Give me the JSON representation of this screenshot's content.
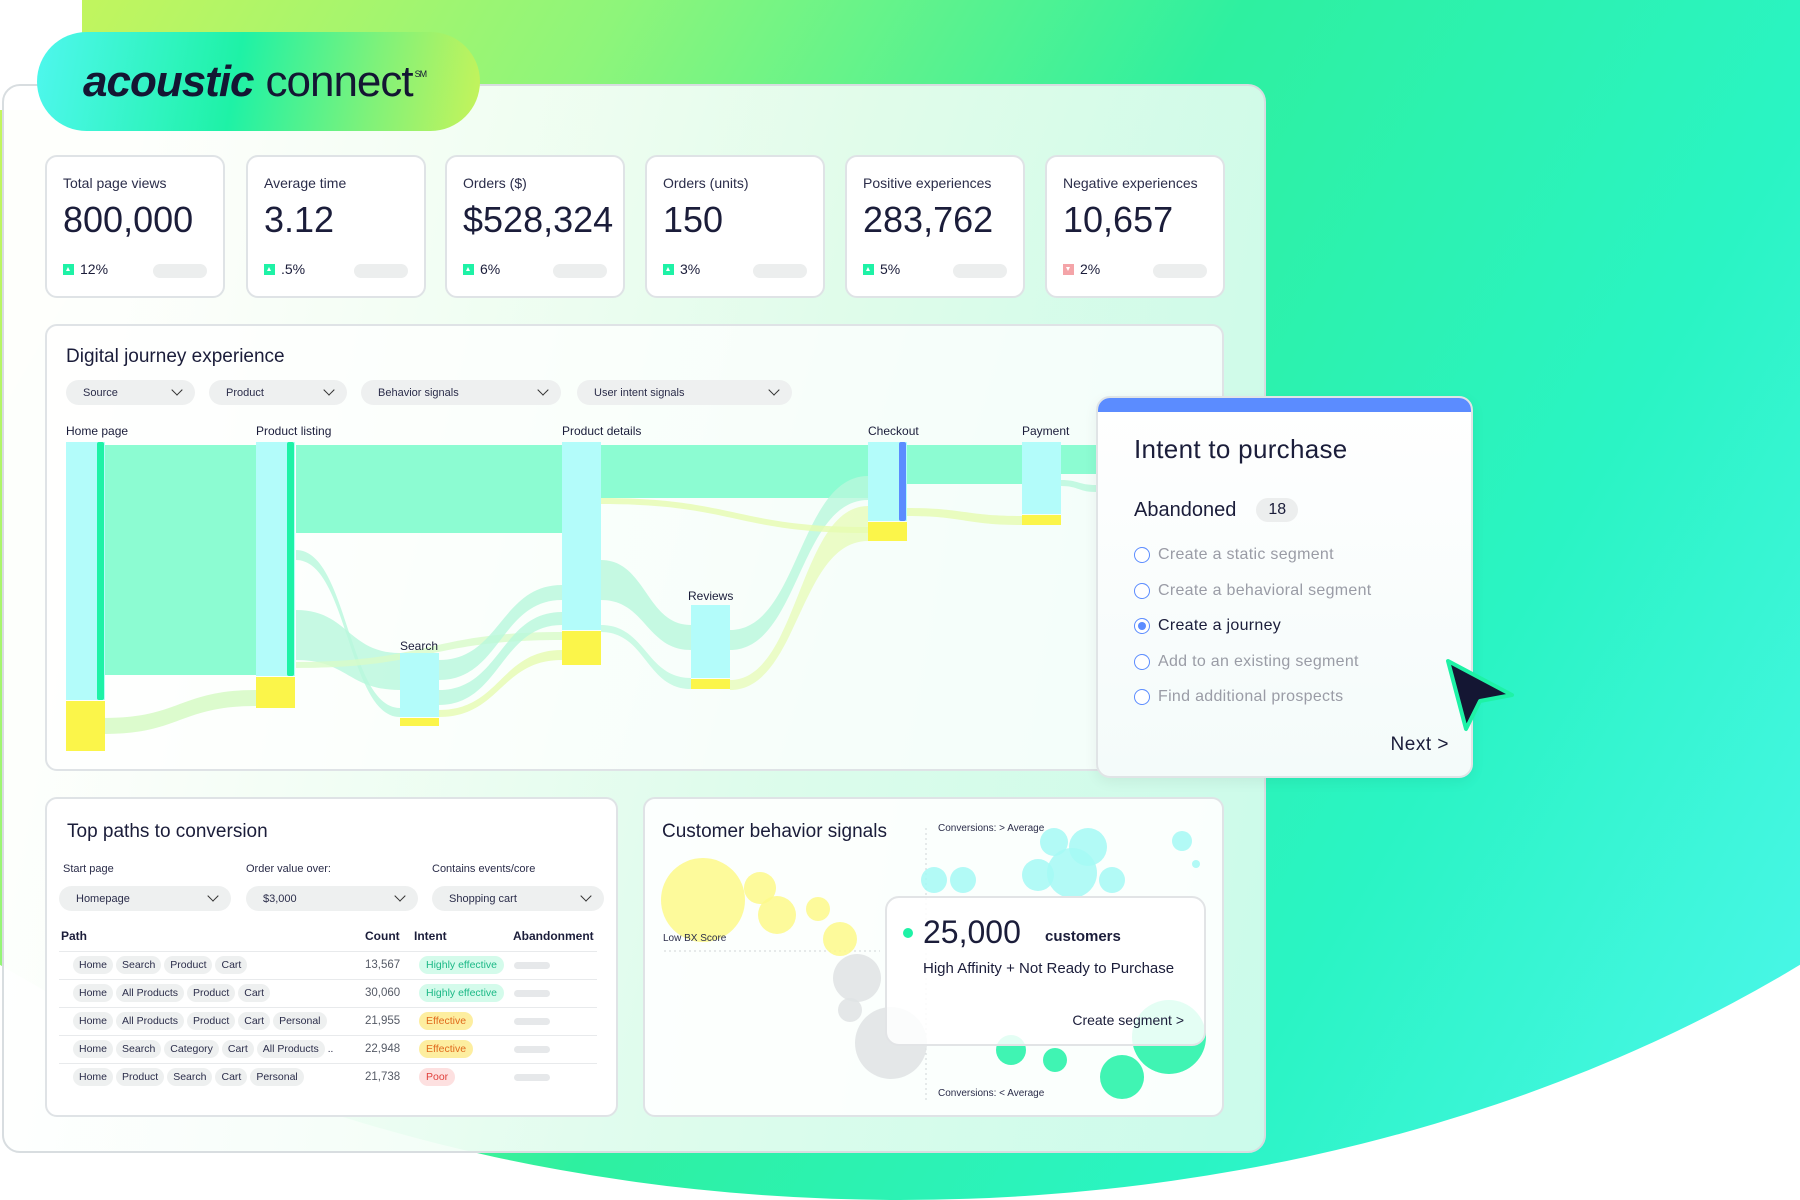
{
  "brand": {
    "name_bold": "acoustic",
    "name_light": "connect",
    "mark": "SM"
  },
  "kpis": [
    {
      "label": "Total page views",
      "value": "800,000",
      "change": "12%",
      "trend": "up"
    },
    {
      "label": "Average time",
      "value": "3.12",
      "change": ".5%",
      "trend": "up"
    },
    {
      "label": "Orders ($)",
      "value": "$528,324",
      "change": "6%",
      "trend": "up"
    },
    {
      "label": "Orders (units)",
      "value": "150",
      "change": "3%",
      "trend": "up"
    },
    {
      "label": "Positive experiences",
      "value": "283,762",
      "change": "5%",
      "trend": "up"
    },
    {
      "label": "Negative experiences",
      "value": "10,657",
      "change": "2%",
      "trend": "down"
    }
  ],
  "journey": {
    "title": "Digital journey experience",
    "filters": [
      "Source",
      "Product",
      "Behavior signals",
      "User intent signals"
    ],
    "nodes": [
      "Home page",
      "Product listing",
      "Product details",
      "Checkout",
      "Payment",
      "Search",
      "Reviews"
    ]
  },
  "intent_popup": {
    "title": "Intent to purchase",
    "status": "Abandoned",
    "count": "18",
    "options": [
      {
        "label": "Create a static segment",
        "selected": false
      },
      {
        "label": "Create a behavioral segment",
        "selected": false
      },
      {
        "label": "Create a journey",
        "selected": true
      },
      {
        "label": "Add to an existing segment",
        "selected": false
      },
      {
        "label": "Find additional prospects",
        "selected": false
      }
    ],
    "next_label": "Next >"
  },
  "top_paths": {
    "title": "Top paths to conversion",
    "filters": [
      {
        "label": "Start page",
        "value": "Homepage"
      },
      {
        "label": "Order value over:",
        "value": "$3,000"
      },
      {
        "label": "Contains events/core",
        "value": "Shopping cart"
      }
    ],
    "columns": [
      "Path",
      "Count",
      "Intent",
      "Abandonment"
    ],
    "rows": [
      {
        "path": [
          "Home",
          "Search",
          "Product",
          "Cart"
        ],
        "more": "",
        "count": "13,567",
        "intent": "Highly effective",
        "level": "high"
      },
      {
        "path": [
          "Home",
          "All Products",
          "Product",
          "Cart"
        ],
        "more": "",
        "count": "30,060",
        "intent": "Highly effective",
        "level": "high"
      },
      {
        "path": [
          "Home",
          "All Products",
          "Product",
          "Cart",
          "Personal"
        ],
        "more": "",
        "count": "21,955",
        "intent": "Effective",
        "level": "mid"
      },
      {
        "path": [
          "Home",
          "Search",
          "Category",
          "Cart",
          "All Products"
        ],
        "more": "..",
        "count": "22,948",
        "intent": "Effective",
        "level": "mid"
      },
      {
        "path": [
          "Home",
          "Product",
          "Search",
          "Cart",
          "Personal"
        ],
        "more": "",
        "count": "21,738",
        "intent": "Poor",
        "level": "low"
      }
    ]
  },
  "behavior": {
    "title": "Customer behavior signals",
    "top_axis": "Conversions: > Average",
    "bottom_axis": "Conversions: < Average",
    "left_label": "Low BX Score",
    "tooltip": {
      "count": "25,000",
      "unit": "customers",
      "desc": "High Affinity + Not Ready to Purchase",
      "action": "Create segment >"
    }
  },
  "colors": {
    "accent": "#5b8cff",
    "green": "#1ef2a6",
    "cyan": "#b3fcfa",
    "yellow": "#fbf54a",
    "text": "#1b1d3a"
  }
}
